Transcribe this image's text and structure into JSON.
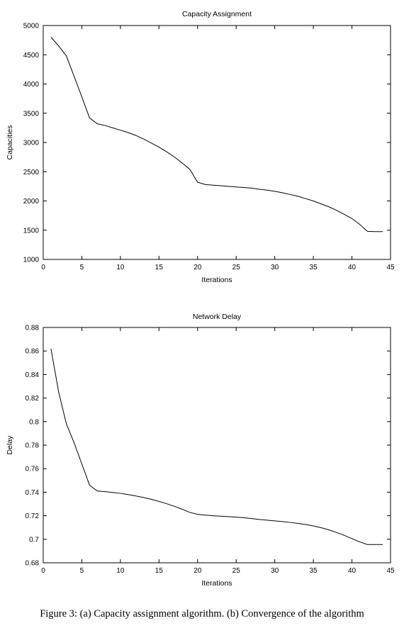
{
  "chart_data": [
    {
      "type": "line",
      "title": "Capacity Assignment",
      "xlabel": "Iterations",
      "ylabel": "Capacities",
      "xlim": [
        0,
        45
      ],
      "ylim": [
        1000,
        5000
      ],
      "xticks": [
        0,
        5,
        10,
        15,
        20,
        25,
        30,
        35,
        40,
        45
      ],
      "yticks": [
        1000,
        1500,
        2000,
        2500,
        3000,
        3500,
        4000,
        4500,
        5000
      ],
      "xtick_labels": [
        "0",
        "5",
        "10",
        "15",
        "20",
        "25",
        "30",
        "35",
        "40",
        "45"
      ],
      "ytick_labels": [
        "1000",
        "1500",
        "2000",
        "2500",
        "3000",
        "3500",
        "4000",
        "4500",
        "5000"
      ],
      "grid": false,
      "series": [
        {
          "x": [
            1,
            2,
            3,
            4,
            5,
            6,
            7,
            8,
            9,
            10,
            11,
            12,
            13,
            14,
            15,
            16,
            17,
            18,
            19,
            20,
            21,
            22,
            23,
            24,
            25,
            26,
            27,
            28,
            29,
            30,
            31,
            32,
            33,
            34,
            35,
            36,
            37,
            38,
            39,
            40,
            41,
            42,
            43,
            44
          ],
          "y": [
            4800,
            4650,
            4480,
            4130,
            3780,
            3420,
            3320,
            3290,
            3250,
            3210,
            3170,
            3120,
            3060,
            2990,
            2920,
            2840,
            2750,
            2650,
            2540,
            2320,
            2280,
            2270,
            2260,
            2250,
            2240,
            2230,
            2220,
            2200,
            2185,
            2165,
            2140,
            2110,
            2080,
            2040,
            2000,
            1950,
            1900,
            1840,
            1770,
            1700,
            1600,
            1480,
            1475,
            1475
          ]
        }
      ]
    },
    {
      "type": "line",
      "title": "Network Delay",
      "xlabel": "Iterations",
      "ylabel": "Delay",
      "xlim": [
        0,
        45
      ],
      "ylim": [
        0.68,
        0.88
      ],
      "xticks": [
        0,
        5,
        10,
        15,
        20,
        25,
        30,
        35,
        40,
        45
      ],
      "yticks": [
        0.68,
        0.7,
        0.72,
        0.74,
        0.76,
        0.78,
        0.8,
        0.82,
        0.84,
        0.86,
        0.88
      ],
      "xtick_labels": [
        "0",
        "5",
        "10",
        "15",
        "20",
        "25",
        "30",
        "35",
        "40",
        "45"
      ],
      "ytick_labels": [
        "0.68",
        "0.7",
        "0.72",
        "0.74",
        "0.76",
        "0.78",
        "0.8",
        "0.82",
        "0.84",
        "0.86",
        "0.88"
      ],
      "grid": false,
      "series": [
        {
          "x": [
            1,
            2,
            3,
            4,
            5,
            6,
            7,
            8,
            9,
            10,
            11,
            12,
            13,
            14,
            15,
            16,
            17,
            18,
            19,
            20,
            21,
            22,
            23,
            24,
            25,
            26,
            27,
            28,
            29,
            30,
            31,
            32,
            33,
            34,
            35,
            36,
            37,
            38,
            39,
            40,
            41,
            42,
            43,
            44
          ],
          "y": [
            0.862,
            0.825,
            0.798,
            0.782,
            0.764,
            0.746,
            0.741,
            0.7405,
            0.7398,
            0.739,
            0.738,
            0.7368,
            0.7355,
            0.734,
            0.7322,
            0.7302,
            0.728,
            0.7255,
            0.7228,
            0.7212,
            0.7205,
            0.72,
            0.7196,
            0.7192,
            0.7188,
            0.7183,
            0.7176,
            0.7168,
            0.7162,
            0.7156,
            0.715,
            0.7143,
            0.7135,
            0.7125,
            0.7113,
            0.7098,
            0.708,
            0.7058,
            0.7033,
            0.7005,
            0.6978,
            0.6955,
            0.6955,
            0.6955
          ]
        }
      ]
    }
  ],
  "caption": "Figure 3: (a) Capacity assignment algorithm. (b) Convergence of the algorithm"
}
